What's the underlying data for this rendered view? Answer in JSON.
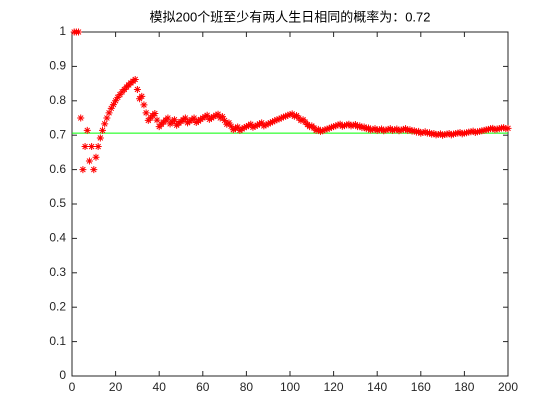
{
  "chart_data": {
    "type": "scatter",
    "title": "模拟200个班至少有两人生日相同的概率为：0.72",
    "color": "#ff0000",
    "reference_line": {
      "value": 0.706,
      "color": "#00ff00"
    },
    "xlim": [
      0,
      200
    ],
    "xticks": [
      0,
      20,
      40,
      60,
      80,
      100,
      120,
      140,
      160,
      180,
      200
    ],
    "ylim": [
      0,
      1
    ],
    "yticks": [
      0,
      0.1,
      0.2,
      0.3,
      0.4,
      0.5,
      0.6,
      0.7,
      0.8,
      0.9,
      1
    ],
    "x": [
      1,
      2,
      3,
      4,
      5,
      6,
      7,
      8,
      9,
      10,
      11,
      12,
      13,
      14,
      15,
      16,
      17,
      18,
      19,
      20,
      21,
      22,
      23,
      24,
      25,
      26,
      27,
      28,
      29,
      30,
      31,
      32,
      33,
      34,
      35,
      36,
      37,
      38,
      39,
      40,
      41,
      42,
      43,
      44,
      45,
      46,
      47,
      48,
      49,
      50,
      51,
      52,
      53,
      54,
      55,
      56,
      57,
      58,
      59,
      60,
      61,
      62,
      63,
      64,
      65,
      66,
      67,
      68,
      69,
      70,
      71,
      72,
      73,
      74,
      75,
      76,
      77,
      78,
      79,
      80,
      81,
      82,
      83,
      84,
      85,
      86,
      87,
      88,
      89,
      90,
      91,
      92,
      93,
      94,
      95,
      96,
      97,
      98,
      99,
      100,
      101,
      102,
      103,
      104,
      105,
      106,
      107,
      108,
      109,
      110,
      111,
      112,
      113,
      114,
      115,
      116,
      117,
      118,
      119,
      120,
      121,
      122,
      123,
      124,
      125,
      126,
      127,
      128,
      129,
      130,
      131,
      132,
      133,
      134,
      135,
      136,
      137,
      138,
      139,
      140,
      141,
      142,
      143,
      144,
      145,
      146,
      147,
      148,
      149,
      150,
      151,
      152,
      153,
      154,
      155,
      156,
      157,
      158,
      159,
      160,
      161,
      162,
      163,
      164,
      165,
      166,
      167,
      168,
      169,
      170,
      171,
      172,
      173,
      174,
      175,
      176,
      177,
      178,
      179,
      180,
      181,
      182,
      183,
      184,
      185,
      186,
      187,
      188,
      189,
      190,
      191,
      192,
      193,
      194,
      195,
      196,
      197,
      198,
      199,
      200
    ],
    "values": [
      1,
      1,
      1,
      0.75,
      0.6,
      0.667,
      0.714,
      0.625,
      0.667,
      0.6,
      0.636,
      0.667,
      0.692,
      0.714,
      0.733,
      0.75,
      0.765,
      0.778,
      0.789,
      0.8,
      0.81,
      0.818,
      0.826,
      0.833,
      0.84,
      0.846,
      0.852,
      0.857,
      0.862,
      0.833,
      0.806,
      0.813,
      0.788,
      0.765,
      0.743,
      0.75,
      0.757,
      0.763,
      0.744,
      0.725,
      0.732,
      0.738,
      0.744,
      0.75,
      0.733,
      0.739,
      0.745,
      0.729,
      0.735,
      0.74,
      0.745,
      0.75,
      0.736,
      0.741,
      0.745,
      0.75,
      0.737,
      0.741,
      0.746,
      0.75,
      0.754,
      0.758,
      0.746,
      0.75,
      0.754,
      0.758,
      0.761,
      0.75,
      0.754,
      0.743,
      0.732,
      0.736,
      0.726,
      0.716,
      0.72,
      0.724,
      0.714,
      0.718,
      0.722,
      0.725,
      0.728,
      0.732,
      0.723,
      0.726,
      0.729,
      0.733,
      0.736,
      0.727,
      0.73,
      0.733,
      0.736,
      0.739,
      0.742,
      0.745,
      0.747,
      0.75,
      0.753,
      0.755,
      0.758,
      0.76,
      0.762,
      0.755,
      0.757,
      0.75,
      0.743,
      0.745,
      0.738,
      0.731,
      0.725,
      0.727,
      0.721,
      0.714,
      0.717,
      0.711,
      0.713,
      0.716,
      0.718,
      0.72,
      0.723,
      0.725,
      0.727,
      0.73,
      0.732,
      0.726,
      0.728,
      0.73,
      0.732,
      0.727,
      0.729,
      0.731,
      0.725,
      0.727,
      0.722,
      0.724,
      0.719,
      0.721,
      0.715,
      0.717,
      0.719,
      0.714,
      0.716,
      0.718,
      0.713,
      0.715,
      0.717,
      0.719,
      0.714,
      0.716,
      0.718,
      0.713,
      0.715,
      0.717,
      0.719,
      0.714,
      0.716,
      0.712,
      0.713,
      0.709,
      0.711,
      0.706,
      0.708,
      0.71,
      0.706,
      0.707,
      0.703,
      0.705,
      0.701,
      0.702,
      0.704,
      0.7,
      0.702,
      0.703,
      0.705,
      0.701,
      0.703,
      0.705,
      0.706,
      0.708,
      0.704,
      0.706,
      0.707,
      0.709,
      0.71,
      0.712,
      0.708,
      0.71,
      0.711,
      0.713,
      0.714,
      0.716,
      0.717,
      0.719,
      0.72,
      0.716,
      0.718,
      0.719,
      0.721,
      0.722,
      0.719,
      0.72
    ]
  }
}
